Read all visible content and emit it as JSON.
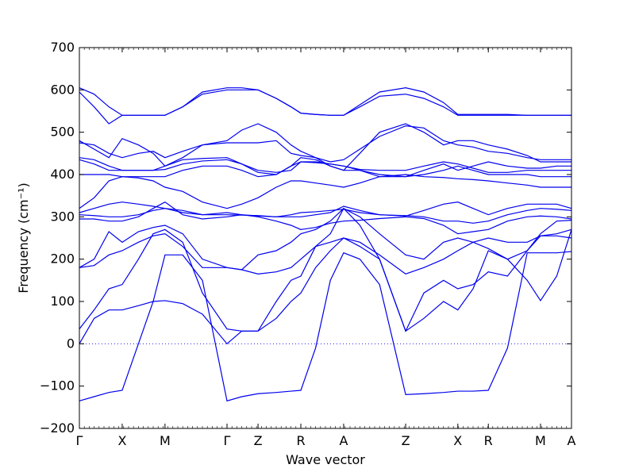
{
  "chart_data": {
    "type": "line",
    "xlabel": "Wave vector",
    "ylabel": "Frequency (cm⁻¹)",
    "ylim": [
      -200,
      700
    ],
    "yticks": [
      -200,
      -100,
      0,
      100,
      200,
      300,
      400,
      500,
      600,
      700
    ],
    "xlim": [
      0,
      1
    ],
    "kpoints": [
      {
        "label": "Γ",
        "x": 0.0
      },
      {
        "label": "X",
        "x": 0.087
      },
      {
        "label": "M",
        "x": 0.174
      },
      {
        "label": "Γ",
        "x": 0.3
      },
      {
        "label": "Z",
        "x": 0.363
      },
      {
        "label": "R",
        "x": 0.45
      },
      {
        "label": "A",
        "x": 0.537
      },
      {
        "label": "Z",
        "x": 0.663
      },
      {
        "label": "X",
        "x": 0.769
      },
      {
        "label": "R",
        "x": 0.831
      },
      {
        "label": "M",
        "x": 0.937
      },
      {
        "label": "A",
        "x": 1.0
      }
    ],
    "zero_line": {
      "y": 0,
      "style": "dotted"
    },
    "line_color": "#0000ee",
    "series": [
      {
        "x": [
          0,
          0.03,
          0.06,
          0.087,
          0.12,
          0.15,
          0.174,
          0.21,
          0.25,
          0.3,
          0.33,
          0.363,
          0.4,
          0.43,
          0.45,
          0.48,
          0.51,
          0.537,
          0.57,
          0.61,
          0.663,
          0.7,
          0.74,
          0.769,
          0.8,
          0.831,
          0.87,
          0.91,
          0.937,
          0.97,
          1.0
        ],
        "y": [
          -135,
          -125,
          -115,
          -110,
          0,
          100,
          210,
          210,
          150,
          -135,
          -125,
          -118,
          -115,
          -112,
          -110,
          -10,
          150,
          215,
          200,
          140,
          -120,
          -118,
          -115,
          -112,
          -112,
          -110,
          -10,
          215,
          215,
          215,
          218
        ]
      },
      {
        "x": [
          0,
          0.03,
          0.06,
          0.087,
          0.12,
          0.15,
          0.174,
          0.21,
          0.25,
          0.3,
          0.33,
          0.363,
          0.4,
          0.43,
          0.45,
          0.48,
          0.51,
          0.537,
          0.57,
          0.61,
          0.663,
          0.7,
          0.74,
          0.769,
          0.8,
          0.831,
          0.87,
          0.91,
          0.937,
          0.97,
          1.0
        ],
        "y": [
          0,
          60,
          80,
          80,
          90,
          100,
          102,
          95,
          70,
          0,
          30,
          30,
          60,
          100,
          120,
          180,
          220,
          250,
          230,
          200,
          30,
          60,
          100,
          80,
          130,
          220,
          200,
          150,
          102,
          160,
          270
        ]
      },
      {
        "x": [
          0,
          0.03,
          0.06,
          0.087,
          0.12,
          0.15,
          0.174,
          0.21,
          0.25,
          0.3,
          0.33,
          0.363,
          0.4,
          0.43,
          0.45,
          0.48,
          0.51,
          0.537,
          0.57,
          0.61,
          0.663,
          0.7,
          0.74,
          0.769,
          0.8,
          0.831,
          0.87,
          0.91,
          0.937,
          0.97,
          1.0
        ],
        "y": [
          35,
          80,
          130,
          140,
          200,
          260,
          270,
          240,
          120,
          35,
          30,
          30,
          100,
          150,
          160,
          230,
          260,
          320,
          280,
          200,
          30,
          120,
          150,
          130,
          140,
          170,
          160,
          220,
          255,
          260,
          270
        ]
      },
      {
        "x": [
          0,
          0.03,
          0.06,
          0.087,
          0.12,
          0.15,
          0.174,
          0.21,
          0.25,
          0.3,
          0.33,
          0.363,
          0.4,
          0.43,
          0.45,
          0.48,
          0.51,
          0.537,
          0.57,
          0.61,
          0.663,
          0.7,
          0.74,
          0.769,
          0.8,
          0.831,
          0.87,
          0.91,
          0.937,
          0.97,
          1.0
        ],
        "y": [
          180,
          185,
          210,
          220,
          240,
          255,
          260,
          230,
          180,
          180,
          175,
          165,
          170,
          180,
          200,
          230,
          240,
          250,
          240,
          210,
          165,
          180,
          200,
          220,
          240,
          250,
          240,
          240,
          255,
          255,
          250
        ]
      },
      {
        "x": [
          0,
          0.03,
          0.06,
          0.087,
          0.12,
          0.15,
          0.174,
          0.21,
          0.25,
          0.3,
          0.33,
          0.363,
          0.4,
          0.43,
          0.45,
          0.48,
          0.51,
          0.537,
          0.57,
          0.61,
          0.663,
          0.7,
          0.74,
          0.769,
          0.8,
          0.831,
          0.87,
          0.91,
          0.937,
          0.97,
          1.0
        ],
        "y": [
          180,
          200,
          265,
          240,
          265,
          275,
          280,
          260,
          200,
          180,
          175,
          210,
          220,
          240,
          260,
          270,
          290,
          320,
          300,
          260,
          210,
          200,
          240,
          250,
          240,
          225,
          200,
          220,
          260,
          290,
          292
        ]
      },
      {
        "x": [
          0,
          0.03,
          0.06,
          0.087,
          0.12,
          0.15,
          0.174,
          0.21,
          0.25,
          0.3,
          0.33,
          0.363,
          0.4,
          0.43,
          0.45,
          0.48,
          0.51,
          0.537,
          0.57,
          0.61,
          0.663,
          0.7,
          0.74,
          0.769,
          0.8,
          0.831,
          0.87,
          0.91,
          0.937,
          0.97,
          1.0
        ],
        "y": [
          295,
          295,
          290,
          290,
          300,
          320,
          335,
          305,
          295,
          300,
          305,
          300,
          290,
          280,
          270,
          275,
          285,
          290,
          292,
          296,
          300,
          296,
          280,
          260,
          265,
          270,
          290,
          300,
          302,
          300,
          295
        ]
      },
      {
        "x": [
          0,
          0.03,
          0.06,
          0.087,
          0.12,
          0.15,
          0.174,
          0.21,
          0.25,
          0.3,
          0.33,
          0.363,
          0.4,
          0.43,
          0.45,
          0.48,
          0.51,
          0.537,
          0.57,
          0.61,
          0.663,
          0.7,
          0.74,
          0.769,
          0.8,
          0.831,
          0.87,
          0.91,
          0.937,
          0.97,
          1.0
        ],
        "y": [
          305,
          303,
          300,
          300,
          305,
          315,
          320,
          315,
          305,
          305,
          304,
          303,
          300,
          305,
          310,
          312,
          315,
          318,
          310,
          305,
          303,
          300,
          290,
          290,
          285,
          290,
          305,
          315,
          320,
          318,
          315
        ]
      },
      {
        "x": [
          0,
          0.03,
          0.06,
          0.087,
          0.12,
          0.15,
          0.174,
          0.21,
          0.25,
          0.3,
          0.33,
          0.363,
          0.4,
          0.43,
          0.45,
          0.48,
          0.51,
          0.537,
          0.57,
          0.61,
          0.663,
          0.7,
          0.74,
          0.769,
          0.8,
          0.831,
          0.87,
          0.91,
          0.937,
          0.97,
          1.0
        ],
        "y": [
          310,
          320,
          330,
          335,
          330,
          325,
          320,
          310,
          305,
          310,
          305,
          302,
          300,
          300,
          300,
          305,
          310,
          325,
          315,
          305,
          302,
          315,
          330,
          335,
          320,
          305,
          320,
          330,
          330,
          330,
          320
        ]
      },
      {
        "x": [
          0,
          0.03,
          0.06,
          0.087,
          0.12,
          0.15,
          0.174,
          0.21,
          0.25,
          0.3,
          0.33,
          0.363,
          0.4,
          0.43,
          0.45,
          0.48,
          0.51,
          0.537,
          0.57,
          0.61,
          0.663,
          0.7,
          0.74,
          0.769,
          0.8,
          0.831,
          0.87,
          0.91,
          0.937,
          0.97,
          1.0
        ],
        "y": [
          320,
          345,
          385,
          395,
          392,
          385,
          370,
          360,
          335,
          320,
          330,
          345,
          370,
          385,
          385,
          380,
          375,
          370,
          380,
          395,
          400,
          395,
          393,
          390,
          388,
          385,
          380,
          375,
          370,
          370,
          370
        ]
      },
      {
        "x": [
          0,
          0.03,
          0.06,
          0.087,
          0.12,
          0.15,
          0.174,
          0.21,
          0.25,
          0.3,
          0.33,
          0.363,
          0.4,
          0.43,
          0.45,
          0.48,
          0.51,
          0.537,
          0.57,
          0.61,
          0.663,
          0.7,
          0.74,
          0.769,
          0.8,
          0.831,
          0.87,
          0.91,
          0.937,
          0.97,
          1.0
        ],
        "y": [
          400,
          400,
          400,
          395,
          395,
          395,
          395,
          410,
          420,
          420,
          410,
          395,
          400,
          420,
          430,
          430,
          425,
          420,
          410,
          400,
          395,
          400,
          410,
          420,
          410,
          400,
          400,
          400,
          395,
          395,
          395
        ]
      },
      {
        "x": [
          0,
          0.03,
          0.06,
          0.087,
          0.12,
          0.15,
          0.174,
          0.21,
          0.25,
          0.3,
          0.33,
          0.363,
          0.4,
          0.43,
          0.45,
          0.48,
          0.51,
          0.537,
          0.57,
          0.61,
          0.663,
          0.7,
          0.74,
          0.769,
          0.8,
          0.831,
          0.87,
          0.91,
          0.937,
          0.97,
          1.0
        ],
        "y": [
          435,
          425,
          410,
          410,
          410,
          410,
          412,
          425,
          432,
          435,
          425,
          410,
          405,
          410,
          430,
          428,
          425,
          420,
          412,
          410,
          410,
          420,
          430,
          425,
          415,
          405,
          405,
          410,
          410,
          410,
          410
        ]
      },
      {
        "x": [
          0,
          0.03,
          0.06,
          0.087,
          0.12,
          0.15,
          0.174,
          0.21,
          0.25,
          0.3,
          0.33,
          0.363,
          0.4,
          0.43,
          0.45,
          0.48,
          0.51,
          0.537,
          0.57,
          0.61,
          0.663,
          0.7,
          0.74,
          0.769,
          0.8,
          0.831,
          0.87,
          0.91,
          0.937,
          0.97,
          1.0
        ],
        "y": [
          440,
          435,
          420,
          410,
          410,
          410,
          420,
          435,
          438,
          440,
          425,
          405,
          400,
          420,
          440,
          435,
          420,
          410,
          410,
          395,
          395,
          410,
          425,
          410,
          420,
          430,
          420,
          415,
          415,
          420,
          420
        ]
      },
      {
        "x": [
          0,
          0.03,
          0.06,
          0.087,
          0.12,
          0.15,
          0.174,
          0.21,
          0.25,
          0.3,
          0.33,
          0.363,
          0.4,
          0.43,
          0.45,
          0.48,
          0.51,
          0.537,
          0.57,
          0.61,
          0.663,
          0.7,
          0.74,
          0.769,
          0.8,
          0.831,
          0.87,
          0.91,
          0.937,
          0.97,
          1.0
        ],
        "y": [
          475,
          470,
          450,
          440,
          450,
          455,
          440,
          455,
          470,
          475,
          475,
          475,
          480,
          450,
          445,
          440,
          430,
          435,
          460,
          490,
          515,
          510,
          480,
          470,
          465,
          455,
          450,
          440,
          435,
          435,
          435
        ]
      },
      {
        "x": [
          0,
          0.03,
          0.06,
          0.087,
          0.12,
          0.15,
          0.174,
          0.21,
          0.25,
          0.3,
          0.33,
          0.363,
          0.4,
          0.43,
          0.45,
          0.48,
          0.51,
          0.537,
          0.57,
          0.61,
          0.663,
          0.7,
          0.74,
          0.769,
          0.8,
          0.831,
          0.87,
          0.91,
          0.937,
          0.97,
          1.0
        ],
        "y": [
          480,
          460,
          440,
          485,
          470,
          450,
          420,
          440,
          470,
          480,
          505,
          520,
          500,
          470,
          455,
          440,
          420,
          410,
          450,
          500,
          520,
          500,
          470,
          480,
          480,
          470,
          460,
          445,
          430,
          430,
          430
        ]
      },
      {
        "x": [
          0,
          0.03,
          0.06,
          0.087,
          0.12,
          0.15,
          0.174,
          0.21,
          0.25,
          0.3,
          0.33,
          0.363,
          0.4,
          0.43,
          0.45,
          0.48,
          0.51,
          0.537,
          0.57,
          0.61,
          0.663,
          0.7,
          0.74,
          0.769,
          0.8,
          0.831,
          0.87,
          0.91,
          0.937,
          0.97,
          1.0
        ],
        "y": [
          595,
          560,
          520,
          540,
          540,
          540,
          540,
          560,
          590,
          600,
          600,
          600,
          580,
          560,
          545,
          542,
          540,
          540,
          560,
          585,
          590,
          580,
          560,
          540,
          540,
          540,
          540,
          540,
          540,
          540,
          540
        ]
      },
      {
        "x": [
          0,
          0.03,
          0.06,
          0.087,
          0.12,
          0.15,
          0.174,
          0.21,
          0.25,
          0.3,
          0.33,
          0.363,
          0.4,
          0.43,
          0.45,
          0.48,
          0.51,
          0.537,
          0.57,
          0.61,
          0.663,
          0.7,
          0.74,
          0.769,
          0.8,
          0.831,
          0.87,
          0.91,
          0.937,
          0.97,
          1.0
        ],
        "y": [
          605,
          590,
          560,
          540,
          540,
          540,
          540,
          560,
          595,
          605,
          605,
          600,
          580,
          560,
          545,
          542,
          540,
          540,
          565,
          595,
          605,
          595,
          570,
          542,
          542,
          542,
          542,
          540,
          540,
          540,
          540
        ]
      }
    ]
  }
}
